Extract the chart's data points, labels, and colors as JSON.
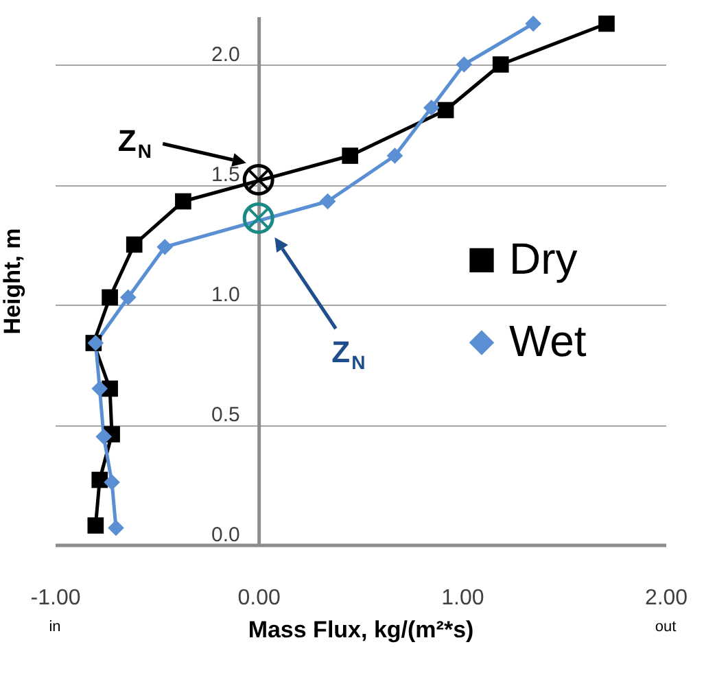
{
  "chart_data": {
    "type": "line",
    "xlabel": "Mass Flux, kg/(m²*s)",
    "ylabel": "Height, m",
    "xlim": [
      -1,
      2
    ],
    "ylim": [
      0,
      2.2
    ],
    "xticks": [
      {
        "value": -1,
        "label": "-1.00"
      },
      {
        "value": 0,
        "label": "0.00"
      },
      {
        "value": 1,
        "label": "1.00"
      },
      {
        "value": 2,
        "label": "2.00"
      }
    ],
    "yticks": [
      {
        "value": 0,
        "label": "0.0"
      },
      {
        "value": 0.5,
        "label": "0.5"
      },
      {
        "value": 1,
        "label": "1.0"
      },
      {
        "value": 1.5,
        "label": "1.5"
      },
      {
        "value": 2,
        "label": "2.0"
      }
    ],
    "grid": "y",
    "legend": "right",
    "series": [
      {
        "name": "Dry",
        "color": "#000000",
        "marker": "square",
        "x": [
          -0.8,
          -0.78,
          -0.72,
          -0.73,
          -0.81,
          -0.73,
          -0.61,
          -0.37,
          0.45,
          0.92,
          1.19,
          1.71
        ],
        "values": [
          0.08,
          0.27,
          0.46,
          0.65,
          0.84,
          1.03,
          1.25,
          1.43,
          1.62,
          1.81,
          2.0,
          2.17
        ]
      },
      {
        "name": "Wet",
        "color": "#5b8fd3",
        "marker": "diamond",
        "x": [
          -0.7,
          -0.72,
          -0.76,
          -0.78,
          -0.8,
          -0.64,
          -0.46,
          0.34,
          0.67,
          0.85,
          1.01,
          1.35
        ],
        "values": [
          0.07,
          0.26,
          0.45,
          0.65,
          0.84,
          1.03,
          1.24,
          1.43,
          1.62,
          1.82,
          2.0,
          2.17
        ]
      },
      {
        "type": "scatter",
        "color": "#000000",
        "marker": "circle",
        "x": [
          0
        ],
        "values": [
          1.52
        ]
      },
      {
        "type": "scatter",
        "color": "#1b8a87",
        "marker": "circle",
        "x": [
          0
        ],
        "values": [
          1.36
        ]
      }
    ],
    "annotations": [
      "Z$_{N}$",
      "Z$_{N}$",
      "in",
      "out"
    ]
  }
}
